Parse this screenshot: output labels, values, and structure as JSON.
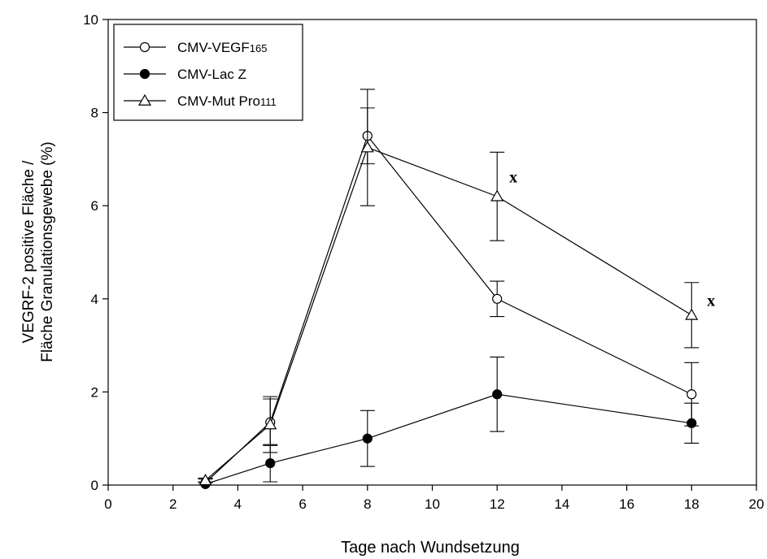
{
  "chart_data": {
    "type": "line",
    "title": "",
    "xlabel": "Tage nach Wundsetzung",
    "ylabel_line1": "VEGRF-2 positive Fläche /",
    "ylabel_line2": "Fläche Granulationsgewebe (%)",
    "xlim": [
      0,
      20
    ],
    "ylim": [
      0,
      10
    ],
    "xticks": [
      0,
      2,
      4,
      6,
      8,
      10,
      12,
      14,
      16,
      18,
      20
    ],
    "yticks": [
      0,
      2,
      4,
      6,
      8,
      10
    ],
    "grid": false,
    "legend_position": "top-left",
    "series": [
      {
        "name": "CMV-VEGF165",
        "name_main": "CMV-VEGF",
        "name_sub": "165",
        "marker": "open-circle",
        "x": [
          3,
          5,
          8,
          12,
          18
        ],
        "y": [
          0.05,
          1.35,
          7.5,
          4.0,
          1.95
        ],
        "err": [
          0.08,
          0.5,
          0.6,
          0.38,
          0.68
        ]
      },
      {
        "name": "CMV-Lac Z",
        "name_main": "CMV-Lac Z",
        "name_sub": "",
        "marker": "filled-circle",
        "x": [
          3,
          5,
          8,
          12,
          18
        ],
        "y": [
          0.02,
          0.47,
          1.0,
          1.95,
          1.33
        ],
        "err": [
          0.05,
          0.4,
          0.6,
          0.8,
          0.43
        ]
      },
      {
        "name": "CMV-Mut Pro111",
        "name_main": "CMV-Mut Pro",
        "name_sub": "111",
        "marker": "open-triangle",
        "x": [
          3,
          5,
          8,
          12,
          18
        ],
        "y": [
          0.1,
          1.3,
          7.25,
          6.2,
          3.65
        ],
        "err": [
          0.05,
          0.6,
          1.25,
          0.95,
          0.7
        ]
      }
    ],
    "annotations": [
      {
        "text": "x",
        "x": 12.5,
        "y": 6.5
      },
      {
        "text": "x",
        "x": 18.6,
        "y": 3.85
      }
    ]
  }
}
